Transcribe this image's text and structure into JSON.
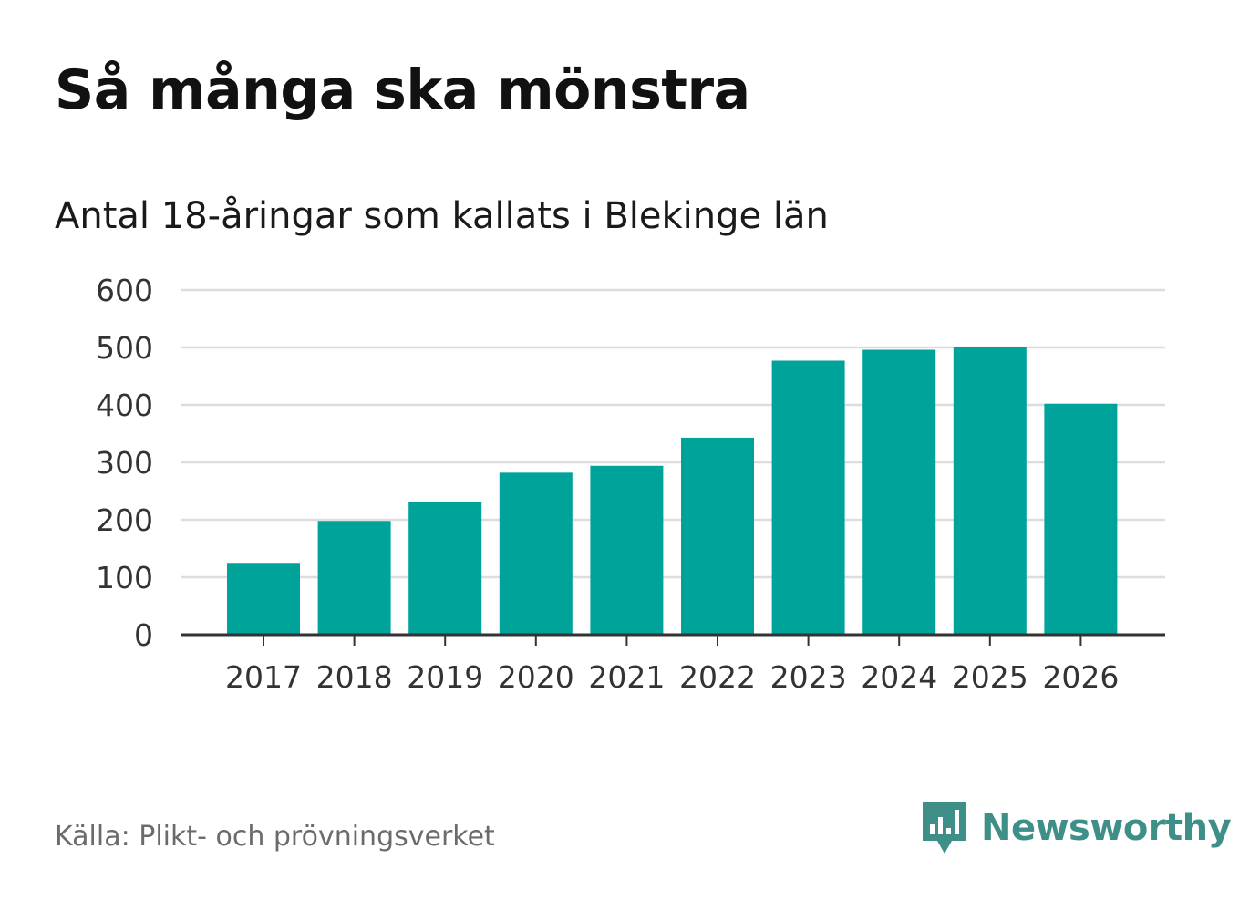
{
  "header": {
    "title": "Så många ska mönstra",
    "subtitle": "Antal 18-åringar som kallats i Blekinge län"
  },
  "footer": {
    "source": "Källa: Plikt- och prövningsverket",
    "brand_name": "Newsworthy",
    "brand_color": "#3d8f87"
  },
  "chart_data": {
    "type": "bar",
    "title": "Så många ska mönstra",
    "subtitle": "Antal 18-åringar som kallats i Blekinge län",
    "xlabel": "",
    "ylabel": "",
    "categories": [
      "2017",
      "2018",
      "2019",
      "2020",
      "2021",
      "2022",
      "2023",
      "2024",
      "2025",
      "2026"
    ],
    "values": [
      125,
      198,
      231,
      282,
      294,
      343,
      477,
      496,
      500,
      402
    ],
    "ylim": [
      0,
      600
    ],
    "yticks": [
      0,
      100,
      200,
      300,
      400,
      500,
      600
    ],
    "grid": true,
    "bar_color": "#00a39a",
    "grid_color": "#dddddd",
    "axis_color": "#333333"
  }
}
